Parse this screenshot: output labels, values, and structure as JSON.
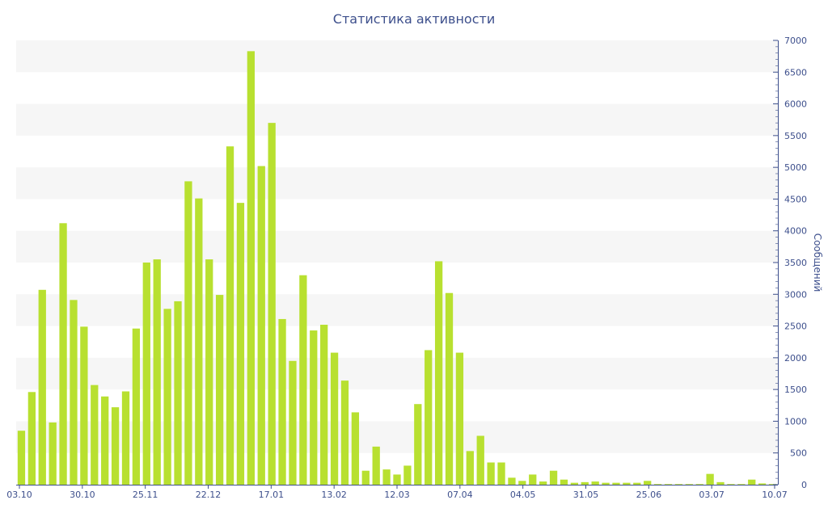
{
  "chart_data": {
    "type": "bar",
    "title": "Статистика активности",
    "ylabel": "Сообщений",
    "xlabel": "",
    "ylim": [
      0,
      7000
    ],
    "yticks": [
      0,
      500,
      1000,
      1500,
      2000,
      2500,
      3000,
      3500,
      4000,
      4500,
      5000,
      5500,
      6000,
      6500,
      7000
    ],
    "y_axis_side": "right",
    "grid": "alternating horizontal bands",
    "legend": "none",
    "bar_color": "#b8e030",
    "band_color": "#f6f6f6",
    "text_color": "#3d4f8c",
    "x_tick_labels": [
      "03.10",
      "30.10",
      "25.11",
      "22.12",
      "17.01",
      "13.02",
      "12.03",
      "07.04",
      "04.05",
      "31.05",
      "25.06",
      "03.07",
      "10.07"
    ],
    "values": [
      850,
      1460,
      3070,
      980,
      4120,
      2910,
      2490,
      1570,
      1390,
      1220,
      1470,
      2460,
      3500,
      3550,
      2770,
      2890,
      4780,
      4510,
      3550,
      2990,
      5330,
      4440,
      6830,
      5020,
      5700,
      2610,
      1950,
      3300,
      2430,
      2520,
      2080,
      1640,
      1140,
      220,
      600,
      240,
      160,
      300,
      1270,
      2120,
      3520,
      3020,
      2080,
      530,
      770,
      350,
      350,
      110,
      60,
      160,
      50,
      220,
      80,
      30,
      40,
      50,
      30,
      30,
      30,
      30,
      60,
      10,
      10,
      10,
      10,
      10,
      170,
      40,
      10,
      10,
      80,
      20,
      10
    ]
  }
}
